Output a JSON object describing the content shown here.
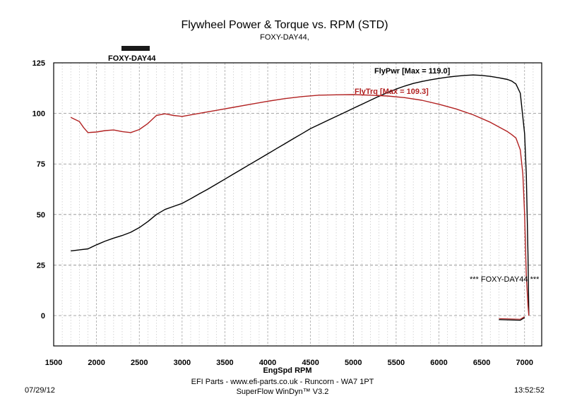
{
  "chart_data": {
    "type": "line",
    "title": "Flywheel Power & Torque vs. RPM (STD)",
    "subtitle": "FOXY-DAY44,",
    "legend": "FOXY-DAY44",
    "xlabel": "EngSpd RPM",
    "ylabel": "",
    "xlim": [
      1500,
      7200
    ],
    "ylim": [
      -15,
      125
    ],
    "xticks": [
      1500,
      2000,
      2500,
      3000,
      3500,
      4000,
      4500,
      5000,
      5500,
      6000,
      6500,
      7000
    ],
    "yticks": [
      0,
      25,
      50,
      75,
      100,
      125
    ],
    "grid": true,
    "annotation": "*** FOXY-DAY44 ***",
    "series": [
      {
        "name": "FlyPwr",
        "label": "FlyPwr [Max = 119.0]",
        "color": "#000000",
        "x": [
          1700,
          1800,
          1900,
          2000,
          2100,
          2200,
          2300,
          2400,
          2500,
          2600,
          2700,
          2800,
          2900,
          3000,
          3100,
          3200,
          3300,
          3400,
          3500,
          3600,
          3700,
          3800,
          3900,
          4000,
          4100,
          4200,
          4300,
          4400,
          4500,
          4600,
          4700,
          4800,
          4900,
          5000,
          5100,
          5200,
          5300,
          5400,
          5500,
          5600,
          5700,
          5800,
          5900,
          6000,
          6100,
          6200,
          6300,
          6400,
          6500,
          6600,
          6700,
          6800,
          6850,
          6900,
          6950,
          7000,
          7020,
          7040,
          7050
        ],
        "values": [
          32,
          32.5,
          33,
          35,
          36.8,
          38.3,
          39.6,
          41.2,
          43.5,
          46.5,
          50,
          52.5,
          54,
          55.5,
          57.8,
          60.2,
          62.5,
          65,
          67.5,
          70,
          72.5,
          75,
          77.5,
          80,
          82.5,
          85,
          87.5,
          90,
          92.5,
          94.5,
          96.5,
          98.5,
          100.5,
          102.5,
          104.5,
          106.5,
          108.5,
          110.3,
          112,
          113.5,
          114.8,
          115.8,
          116.6,
          117.3,
          117.9,
          118.4,
          118.8,
          119,
          118.8,
          118.3,
          117.6,
          116.8,
          116,
          114.5,
          110,
          90,
          70,
          30,
          0
        ]
      },
      {
        "name": "FlyTrq",
        "label": "FlyTrq [Max = 109.3]",
        "color": "#b22222",
        "x": [
          1700,
          1750,
          1800,
          1850,
          1900,
          2000,
          2100,
          2200,
          2300,
          2400,
          2500,
          2600,
          2700,
          2800,
          2900,
          3000,
          3200,
          3400,
          3600,
          3800,
          4000,
          4200,
          4400,
          4600,
          4800,
          5000,
          5200,
          5400,
          5600,
          5800,
          6000,
          6200,
          6400,
          6600,
          6800,
          6850,
          6900,
          6950,
          6980,
          7000,
          7020,
          7040,
          7050
        ],
        "values": [
          98,
          97,
          96,
          93,
          90.5,
          90.8,
          91.5,
          91.8,
          91,
          90.5,
          92,
          95,
          99,
          99.8,
          99,
          98.5,
          100,
          101.5,
          103,
          104.5,
          106,
          107.3,
          108.3,
          109,
          109.2,
          109.3,
          109,
          108.6,
          107.8,
          106.5,
          104.5,
          102.2,
          99.3,
          95.6,
          91,
          89.5,
          87.8,
          82,
          70,
          50,
          20,
          5,
          0
        ]
      }
    ]
  },
  "footer": {
    "date": "07/29/12",
    "time": "13:52:52",
    "line1": "EFI Parts - www.efi-parts.co.uk - Runcorn - WA7 1PT",
    "line2": "SuperFlow WinDyn™ V3.2"
  }
}
